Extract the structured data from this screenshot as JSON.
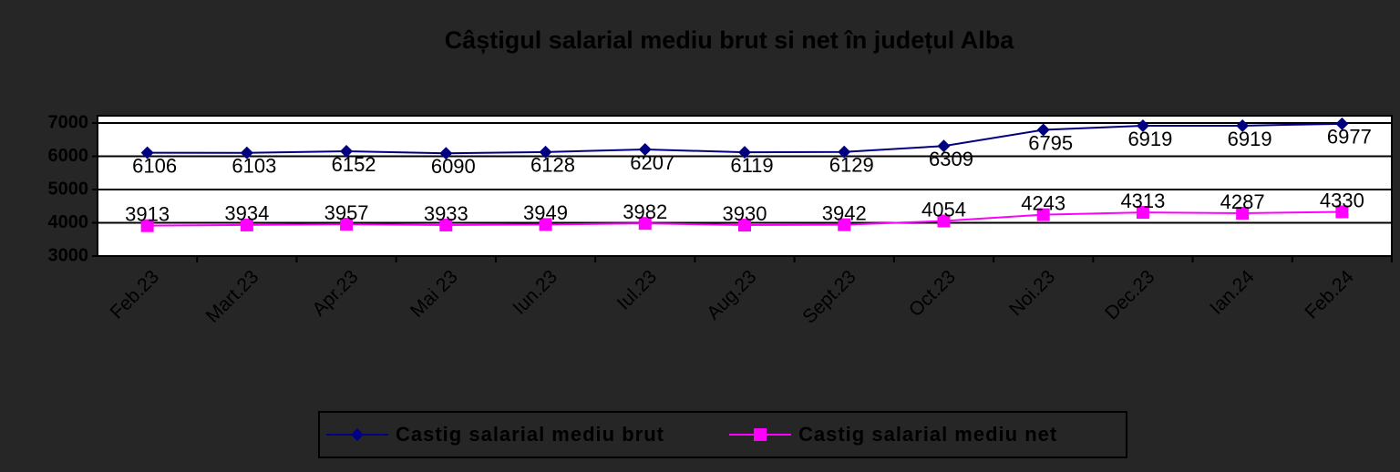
{
  "chart_data": {
    "type": "line",
    "title": "Câștigul salarial mediu brut si net în județul Alba",
    "categories": [
      "Feb.23",
      "Mart.23",
      "Apr.23",
      "Mai 23",
      "Iun.23",
      "Iul.23",
      "Aug.23",
      "Sept.23",
      "Oct.23",
      "Noi.23",
      "Dec.23",
      "Ian.24",
      "Feb.24"
    ],
    "series": [
      {
        "name": "Castig salarial mediu brut",
        "color": "#000080",
        "marker": "diamond",
        "values": [
          6106,
          6103,
          6152,
          6090,
          6128,
          6207,
          6119,
          6129,
          6309,
          6795,
          6919,
          6919,
          6977
        ]
      },
      {
        "name": "Castig salarial mediu net",
        "color": "#ff00ff",
        "marker": "square",
        "values": [
          3913,
          3934,
          3957,
          3933,
          3949,
          3982,
          3930,
          3942,
          4054,
          4243,
          4313,
          4287,
          4330
        ]
      }
    ],
    "ylim": [
      3000,
      7000
    ],
    "yticks": [
      3000,
      4000,
      5000,
      6000,
      7000
    ],
    "grid": true,
    "legend": "bottom"
  }
}
